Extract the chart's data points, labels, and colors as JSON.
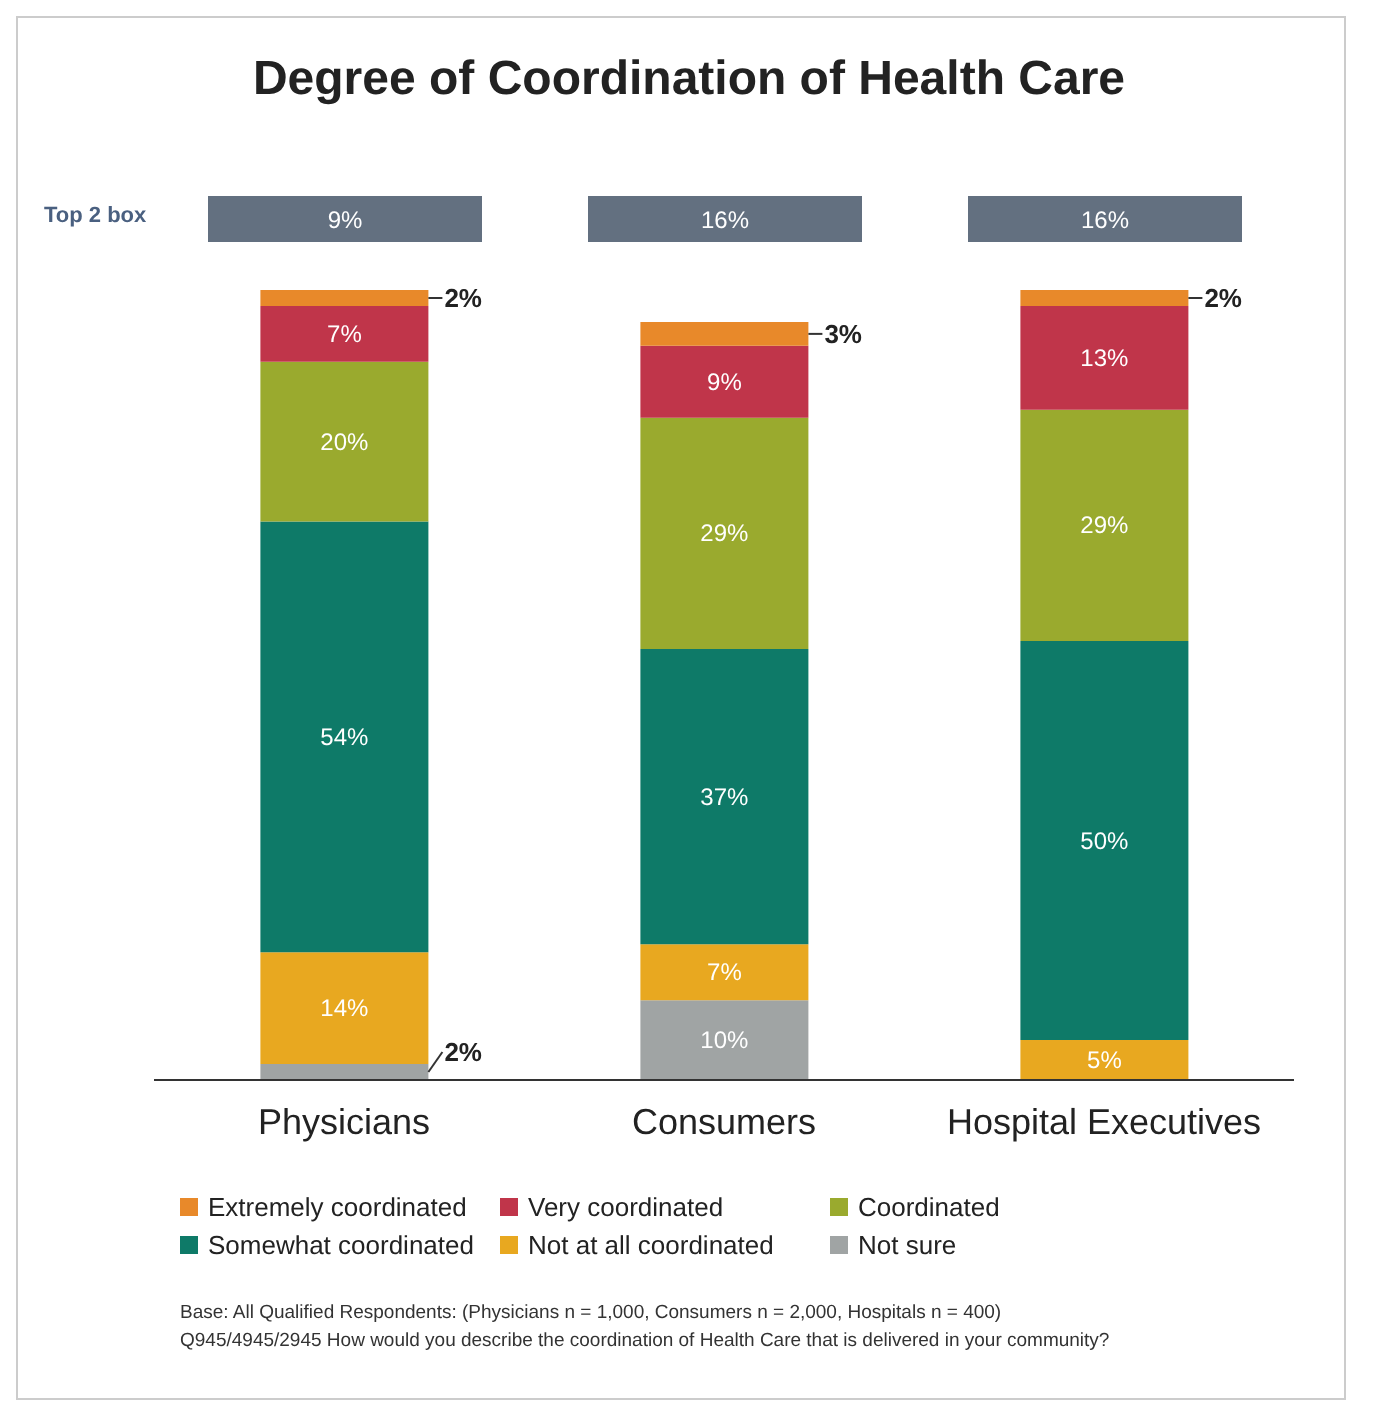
{
  "chart_data": {
    "type": "bar",
    "title": "Degree of Coordination of Health Care",
    "stacked": true,
    "legend": "bottom",
    "grid": false,
    "categories": [
      "Physicians",
      "Consumers",
      "Hospital Executives"
    ],
    "series": [
      {
        "name": "Not sure",
        "color": "#a0a4a4",
        "values": [
          2,
          10,
          null
        ],
        "value_labels": [
          "2%",
          "10%",
          null
        ]
      },
      {
        "name": "Not at all coordinated",
        "color": "#e8a820",
        "values": [
          14,
          7,
          5
        ],
        "value_labels": [
          "14%",
          "7%",
          "5%"
        ]
      },
      {
        "name": "Somewhat coordinated",
        "color": "#0e7a68",
        "values": [
          54,
          37,
          50
        ],
        "value_labels": [
          "54%",
          "37%",
          "50%"
        ]
      },
      {
        "name": "Coordinated",
        "color": "#9aaa2e",
        "values": [
          20,
          29,
          29
        ],
        "value_labels": [
          "20%",
          "29%",
          "29%"
        ]
      },
      {
        "name": "Very coordinated",
        "color": "#c0354a",
        "values": [
          7,
          9,
          13
        ],
        "value_labels": [
          "7%",
          "9%",
          "13%"
        ]
      },
      {
        "name": "Extremely coordinated",
        "color": "#e8892a",
        "values": [
          2,
          3,
          2
        ],
        "value_labels": [
          "2%",
          "3%",
          "2%"
        ]
      }
    ],
    "annotations": [
      "Top 2 box",
      "9%",
      "16%",
      "16%",
      "Base: All Qualified Respondents: (Physicians n = 1,000, Consumers n = 2,000, Hospitals n = 400)",
      "Q945/4945/2945 How would you describe the coordination of Health Care that is delivered in your community?"
    ]
  }
}
